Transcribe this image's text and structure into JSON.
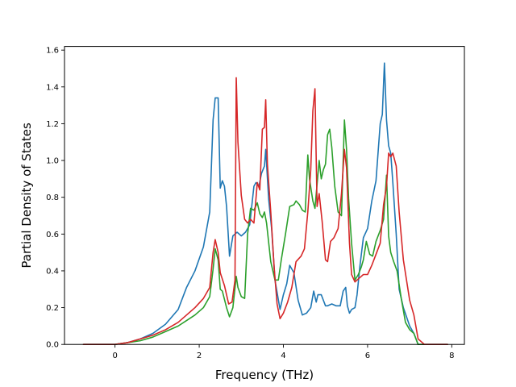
{
  "chart_data": {
    "type": "line",
    "title": "",
    "xlabel": "Frequency (THz)",
    "ylabel": "Partial Density of States",
    "xlim": [
      -1.2,
      8.3
    ],
    "ylim": [
      0.0,
      1.62
    ],
    "xticks": [
      0,
      2,
      4,
      6,
      8
    ],
    "yticks": [
      0.0,
      0.2,
      0.4,
      0.6,
      0.8,
      1.0,
      1.2,
      1.4,
      1.6
    ],
    "xtick_labels": [
      "0",
      "2",
      "4",
      "6",
      "8"
    ],
    "ytick_labels": [
      "0.0",
      "0.2",
      "0.4",
      "0.6",
      "0.8",
      "1.0",
      "1.2",
      "1.4",
      "1.6"
    ],
    "grid": false,
    "legend": "none",
    "series": [
      {
        "color": "#1f77b4",
        "x": [
          -0.75,
          0.0,
          0.3,
          0.6,
          0.9,
          1.2,
          1.5,
          1.7,
          1.9,
          2.1,
          2.25,
          2.33,
          2.38,
          2.45,
          2.5,
          2.55,
          2.6,
          2.65,
          2.72,
          2.8,
          2.9,
          3.0,
          3.1,
          3.2,
          3.3,
          3.35,
          3.42,
          3.48,
          3.55,
          3.58,
          3.65,
          3.72,
          3.8,
          3.92,
          4.0,
          4.08,
          4.15,
          4.25,
          4.35,
          4.45,
          4.55,
          4.65,
          4.72,
          4.78,
          4.82,
          4.9,
          5.0,
          5.05,
          5.15,
          5.25,
          5.35,
          5.42,
          5.48,
          5.52,
          5.57,
          5.62,
          5.7,
          5.75,
          5.82,
          5.9,
          6.0,
          6.1,
          6.2,
          6.3,
          6.35,
          6.4,
          6.45,
          6.5,
          6.55,
          6.6,
          6.68,
          6.75,
          6.85,
          7.0,
          7.1,
          7.2,
          7.35,
          7.5,
          7.7,
          7.9
        ],
        "y": [
          0.0,
          0.0,
          0.01,
          0.03,
          0.06,
          0.11,
          0.19,
          0.31,
          0.4,
          0.53,
          0.72,
          1.22,
          1.34,
          1.34,
          0.85,
          0.89,
          0.86,
          0.75,
          0.48,
          0.59,
          0.61,
          0.59,
          0.61,
          0.65,
          0.86,
          0.88,
          0.86,
          0.93,
          0.97,
          1.06,
          0.79,
          0.63,
          0.35,
          0.19,
          0.27,
          0.33,
          0.43,
          0.39,
          0.24,
          0.16,
          0.17,
          0.2,
          0.29,
          0.23,
          0.27,
          0.27,
          0.21,
          0.21,
          0.22,
          0.21,
          0.21,
          0.29,
          0.31,
          0.21,
          0.17,
          0.19,
          0.2,
          0.27,
          0.43,
          0.58,
          0.63,
          0.78,
          0.89,
          1.2,
          1.25,
          1.53,
          1.22,
          1.08,
          1.04,
          0.88,
          0.6,
          0.3,
          0.2,
          0.1,
          0.06,
          0.0,
          0.0,
          0.0,
          0.0,
          0.0
        ]
      },
      {
        "color": "#2ca02c",
        "x": [
          -0.75,
          0.0,
          0.3,
          0.6,
          0.9,
          1.2,
          1.5,
          1.7,
          1.9,
          2.1,
          2.25,
          2.33,
          2.38,
          2.45,
          2.5,
          2.55,
          2.65,
          2.72,
          2.8,
          2.88,
          2.92,
          3.0,
          3.08,
          3.15,
          3.22,
          3.3,
          3.38,
          3.44,
          3.5,
          3.55,
          3.6,
          3.7,
          3.8,
          3.88,
          3.95,
          4.05,
          4.15,
          4.25,
          4.3,
          4.38,
          4.45,
          4.52,
          4.58,
          4.62,
          4.7,
          4.75,
          4.8,
          4.85,
          4.9,
          4.95,
          5.0,
          5.05,
          5.1,
          5.15,
          5.22,
          5.3,
          5.38,
          5.45,
          5.5,
          5.55,
          5.62,
          5.7,
          5.78,
          5.85,
          5.9,
          5.97,
          6.05,
          6.12,
          6.2,
          6.3,
          6.38,
          6.45,
          6.5,
          6.55,
          6.62,
          6.7,
          6.8,
          6.9,
          7.0,
          7.1,
          7.2,
          7.35,
          7.5,
          7.7,
          7.9
        ],
        "y": [
          0.0,
          0.0,
          0.01,
          0.02,
          0.04,
          0.07,
          0.1,
          0.13,
          0.16,
          0.2,
          0.26,
          0.41,
          0.52,
          0.46,
          0.3,
          0.29,
          0.2,
          0.15,
          0.2,
          0.37,
          0.31,
          0.26,
          0.25,
          0.6,
          0.74,
          0.73,
          0.77,
          0.71,
          0.69,
          0.72,
          0.66,
          0.45,
          0.35,
          0.35,
          0.46,
          0.6,
          0.75,
          0.76,
          0.78,
          0.76,
          0.73,
          0.72,
          1.03,
          0.9,
          0.78,
          0.74,
          0.87,
          1.0,
          0.9,
          0.95,
          0.98,
          1.14,
          1.17,
          1.07,
          0.86,
          0.72,
          0.7,
          1.22,
          1.06,
          0.79,
          0.55,
          0.35,
          0.38,
          0.42,
          0.46,
          0.56,
          0.49,
          0.48,
          0.56,
          0.62,
          0.68,
          0.92,
          0.59,
          0.5,
          0.45,
          0.4,
          0.25,
          0.12,
          0.08,
          0.06,
          0.0,
          0.0,
          0.0,
          0.0,
          0.0
        ]
      },
      {
        "color": "#d62728",
        "x": [
          -0.75,
          0.0,
          0.3,
          0.6,
          0.9,
          1.2,
          1.5,
          1.7,
          1.9,
          2.1,
          2.25,
          2.33,
          2.38,
          2.45,
          2.5,
          2.6,
          2.7,
          2.78,
          2.85,
          2.88,
          2.92,
          3.0,
          3.08,
          3.15,
          3.22,
          3.3,
          3.38,
          3.44,
          3.5,
          3.55,
          3.58,
          3.62,
          3.7,
          3.78,
          3.85,
          3.92,
          4.0,
          4.1,
          4.2,
          4.3,
          4.42,
          4.5,
          4.58,
          4.65,
          4.7,
          4.75,
          4.8,
          4.85,
          4.92,
          5.0,
          5.05,
          5.12,
          5.2,
          5.3,
          5.38,
          5.45,
          5.5,
          5.57,
          5.62,
          5.7,
          5.8,
          5.9,
          6.0,
          6.1,
          6.2,
          6.3,
          6.38,
          6.45,
          6.5,
          6.55,
          6.6,
          6.68,
          6.75,
          6.85,
          7.0,
          7.1,
          7.2,
          7.35,
          7.5,
          7.7,
          7.9
        ],
        "y": [
          0.0,
          0.0,
          0.01,
          0.03,
          0.05,
          0.08,
          0.12,
          0.16,
          0.2,
          0.25,
          0.31,
          0.5,
          0.57,
          0.5,
          0.39,
          0.32,
          0.22,
          0.23,
          0.35,
          1.45,
          1.1,
          0.81,
          0.68,
          0.66,
          0.68,
          0.66,
          0.88,
          0.84,
          1.17,
          1.18,
          1.33,
          0.98,
          0.72,
          0.42,
          0.22,
          0.14,
          0.17,
          0.23,
          0.31,
          0.45,
          0.48,
          0.52,
          0.72,
          0.95,
          1.27,
          1.39,
          0.75,
          0.82,
          0.67,
          0.46,
          0.45,
          0.56,
          0.58,
          0.63,
          0.82,
          1.06,
          0.96,
          0.55,
          0.38,
          0.34,
          0.36,
          0.38,
          0.38,
          0.43,
          0.49,
          0.55,
          0.76,
          0.86,
          1.04,
          1.02,
          1.04,
          0.97,
          0.72,
          0.46,
          0.24,
          0.16,
          0.03,
          0.0,
          0.0,
          0.0,
          0.0
        ]
      }
    ]
  }
}
